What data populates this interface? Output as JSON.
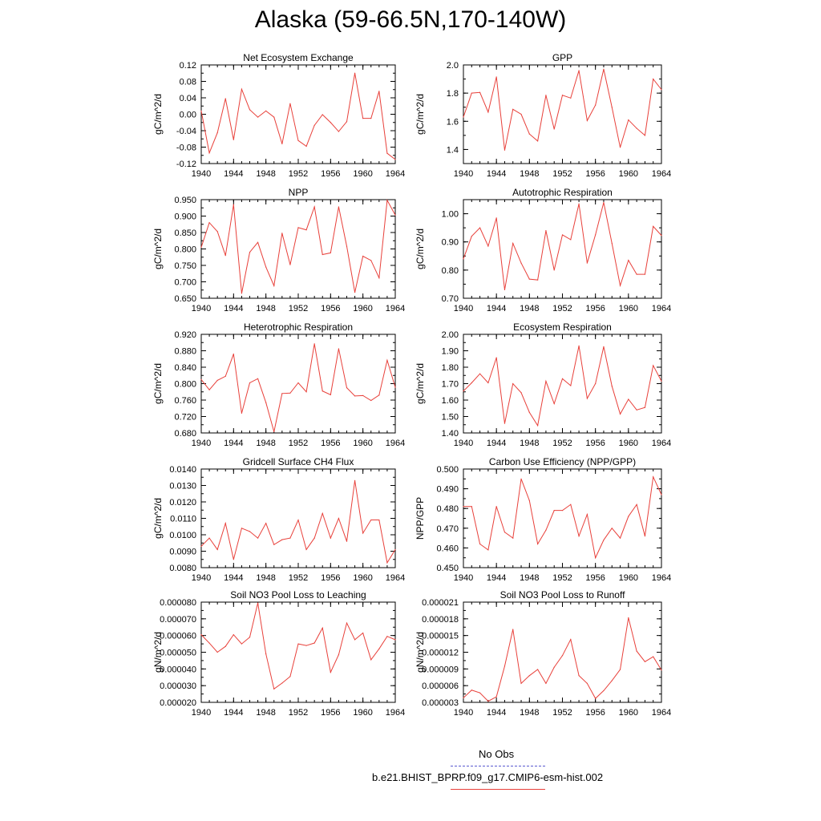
{
  "title": "Alaska (59-66.5N,170-140W)",
  "legend": {
    "obs_label": "No Obs",
    "obs_color": "#5a5ad0",
    "model_label": "b.e21.BHIST_BPRP.f09_g17.CMIP6-esm-hist.002",
    "model_color": "#e8403a"
  },
  "chart_data": [
    {
      "type": "line",
      "title": "Net Ecosystem Exchange",
      "ylabel": "gC/m^2/d",
      "xlim": [
        1940,
        1964
      ],
      "ylim": [
        -0.12,
        0.12
      ],
      "xticks": [
        "1940",
        "1944",
        "1948",
        "1952",
        "1956",
        "1960",
        "1964"
      ],
      "yticks": [
        "-0.12",
        "-0.08",
        "-0.04",
        "0.00",
        "0.04",
        "0.08",
        "0.12"
      ],
      "x": [
        1940,
        1941,
        1942,
        1943,
        1944,
        1945,
        1946,
        1947,
        1948,
        1949,
        1950,
        1951,
        1952,
        1953,
        1954,
        1955,
        1956,
        1957,
        1958,
        1959,
        1960,
        1961,
        1962,
        1963,
        1964
      ],
      "values": [
        0.008,
        -0.094,
        -0.045,
        0.038,
        -0.062,
        0.061,
        0.011,
        -0.007,
        0.008,
        -0.007,
        -0.072,
        0.026,
        -0.064,
        -0.078,
        -0.027,
        -0.001,
        -0.02,
        -0.042,
        -0.018,
        0.1,
        -0.01,
        -0.01,
        0.056,
        -0.095,
        -0.11
      ],
      "series_name": "b.e21.BHIST_BPRP.f09_g17.CMIP6-esm-hist.002"
    },
    {
      "type": "line",
      "title": "GPP",
      "ylabel": "gC/m^2/d",
      "xlim": [
        1940,
        1964
      ],
      "ylim": [
        1.3,
        2.0
      ],
      "xticks": [
        "1940",
        "1944",
        "1948",
        "1952",
        "1956",
        "1960",
        "1964"
      ],
      "yticks": [
        "1.4",
        "1.6",
        "1.8",
        "2.0"
      ],
      "x": [
        1940,
        1941,
        1942,
        1943,
        1944,
        1945,
        1946,
        1947,
        1948,
        1949,
        1950,
        1951,
        1952,
        1953,
        1954,
        1955,
        1956,
        1957,
        1958,
        1959,
        1960,
        1961,
        1962,
        1963,
        1964
      ],
      "values": [
        1.63,
        1.8,
        1.805,
        1.665,
        1.915,
        1.395,
        1.685,
        1.65,
        1.51,
        1.46,
        1.785,
        1.545,
        1.785,
        1.765,
        1.96,
        1.605,
        1.715,
        1.97,
        1.7,
        1.415,
        1.61,
        1.55,
        1.5,
        1.9,
        1.825
      ],
      "series_name": "b.e21.BHIST_BPRP.f09_g17.CMIP6-esm-hist.002"
    },
    {
      "type": "line",
      "title": "NPP",
      "ylabel": "gC/m^2/d",
      "xlim": [
        1940,
        1964
      ],
      "ylim": [
        0.65,
        0.95
      ],
      "xticks": [
        "1940",
        "1944",
        "1948",
        "1952",
        "1956",
        "1960",
        "1964"
      ],
      "yticks": [
        "0.650",
        "0.700",
        "0.750",
        "0.800",
        "0.850",
        "0.900",
        "0.950"
      ],
      "x": [
        1940,
        1941,
        1942,
        1943,
        1944,
        1945,
        1946,
        1947,
        1948,
        1949,
        1950,
        1951,
        1952,
        1953,
        1954,
        1955,
        1956,
        1957,
        1958,
        1959,
        1960,
        1961,
        1962,
        1963,
        1964
      ],
      "values": [
        0.805,
        0.88,
        0.853,
        0.78,
        0.935,
        0.665,
        0.79,
        0.82,
        0.745,
        0.688,
        0.848,
        0.752,
        0.865,
        0.858,
        0.928,
        0.783,
        0.788,
        0.928,
        0.808,
        0.668,
        0.778,
        0.765,
        0.712,
        0.948,
        0.903
      ],
      "series_name": "b.e21.BHIST_BPRP.f09_g17.CMIP6-esm-hist.002"
    },
    {
      "type": "line",
      "title": "Autotrophic Respiration",
      "ylabel": "gC/m^2/d",
      "xlim": [
        1940,
        1964
      ],
      "ylim": [
        0.7,
        1.05
      ],
      "xticks": [
        "1940",
        "1944",
        "1948",
        "1952",
        "1956",
        "1960",
        "1964"
      ],
      "yticks": [
        "0.70",
        "0.80",
        "0.90",
        "1.00"
      ],
      "x": [
        1940,
        1941,
        1942,
        1943,
        1944,
        1945,
        1946,
        1947,
        1948,
        1949,
        1950,
        1951,
        1952,
        1953,
        1954,
        1955,
        1956,
        1957,
        1958,
        1959,
        1960,
        1961,
        1962,
        1963,
        1964
      ],
      "values": [
        0.84,
        0.92,
        0.95,
        0.885,
        0.985,
        0.73,
        0.895,
        0.825,
        0.768,
        0.765,
        0.94,
        0.8,
        0.925,
        0.908,
        1.035,
        0.825,
        0.925,
        1.04,
        0.895,
        0.745,
        0.835,
        0.785,
        0.785,
        0.955,
        0.923
      ],
      "series_name": "b.e21.BHIST_BPRP.f09_g17.CMIP6-esm-hist.002"
    },
    {
      "type": "line",
      "title": "Heterotrophic Respiration",
      "ylabel": "gC/m^2/d",
      "xlim": [
        1940,
        1964
      ],
      "ylim": [
        0.68,
        0.92
      ],
      "xticks": [
        "1940",
        "1944",
        "1948",
        "1952",
        "1956",
        "1960",
        "1964"
      ],
      "yticks": [
        "0.680",
        "0.720",
        "0.760",
        "0.800",
        "0.840",
        "0.880",
        "0.920"
      ],
      "x": [
        1940,
        1941,
        1942,
        1943,
        1944,
        1945,
        1946,
        1947,
        1948,
        1949,
        1950,
        1951,
        1952,
        1953,
        1954,
        1955,
        1956,
        1957,
        1958,
        1959,
        1960,
        1961,
        1962,
        1963,
        1964
      ],
      "values": [
        0.81,
        0.785,
        0.808,
        0.818,
        0.872,
        0.728,
        0.802,
        0.812,
        0.754,
        0.683,
        0.776,
        0.777,
        0.802,
        0.78,
        0.897,
        0.782,
        0.773,
        0.885,
        0.79,
        0.77,
        0.771,
        0.759,
        0.772,
        0.857,
        0.791
      ],
      "series_name": "b.e21.BHIST_BPRP.f09_g17.CMIP6-esm-hist.002"
    },
    {
      "type": "line",
      "title": "Ecosystem Respiration",
      "ylabel": "gC/m^2/d",
      "xlim": [
        1940,
        1964
      ],
      "ylim": [
        1.4,
        2.0
      ],
      "xticks": [
        "1940",
        "1944",
        "1948",
        "1952",
        "1956",
        "1960",
        "1964"
      ],
      "yticks": [
        "1.40",
        "1.50",
        "1.60",
        "1.70",
        "1.80",
        "1.90",
        "2.00"
      ],
      "x": [
        1940,
        1941,
        1942,
        1943,
        1944,
        1945,
        1946,
        1947,
        1948,
        1949,
        1950,
        1951,
        1952,
        1953,
        1954,
        1955,
        1956,
        1957,
        1958,
        1959,
        1960,
        1961,
        1962,
        1963,
        1964
      ],
      "values": [
        1.655,
        1.705,
        1.76,
        1.705,
        1.858,
        1.458,
        1.7,
        1.645,
        1.525,
        1.445,
        1.715,
        1.578,
        1.73,
        1.688,
        1.93,
        1.61,
        1.7,
        1.925,
        1.685,
        1.515,
        1.605,
        1.54,
        1.555,
        1.81,
        1.715
      ],
      "series_name": "b.e21.BHIST_BPRP.f09_g17.CMIP6-esm-hist.002"
    },
    {
      "type": "line",
      "title": "Gridcell Surface CH4 Flux",
      "ylabel": "gC/m^2/d",
      "xlim": [
        1940,
        1964
      ],
      "ylim": [
        0.008,
        0.014
      ],
      "xticks": [
        "1940",
        "1944",
        "1948",
        "1952",
        "1956",
        "1960",
        "1964"
      ],
      "yticks": [
        "0.0080",
        "0.0090",
        "0.0100",
        "0.0110",
        "0.0120",
        "0.0130",
        "0.0140"
      ],
      "x": [
        1940,
        1941,
        1942,
        1943,
        1944,
        1945,
        1946,
        1947,
        1948,
        1949,
        1950,
        1951,
        1952,
        1953,
        1954,
        1955,
        1956,
        1957,
        1958,
        1959,
        1960,
        1961,
        1962,
        1963,
        1964
      ],
      "values": [
        0.0093,
        0.0098,
        0.0091,
        0.0107,
        0.0085,
        0.0104,
        0.0102,
        0.0098,
        0.0107,
        0.0094,
        0.0097,
        0.0098,
        0.0109,
        0.0091,
        0.0098,
        0.0113,
        0.0098,
        0.011,
        0.0096,
        0.0133,
        0.0101,
        0.0109,
        0.0109,
        0.0083,
        0.0091
      ],
      "series_name": "b.e21.BHIST_BPRP.f09_g17.CMIP6-esm-hist.002"
    },
    {
      "type": "line",
      "title": "Carbon Use Efficiency (NPP/GPP)",
      "ylabel": "NPP/GPP",
      "xlim": [
        1940,
        1964
      ],
      "ylim": [
        0.45,
        0.5
      ],
      "xticks": [
        "1940",
        "1944",
        "1948",
        "1952",
        "1956",
        "1960",
        "1964"
      ],
      "yticks": [
        "0.450",
        "0.460",
        "0.470",
        "0.480",
        "0.490",
        "0.500"
      ],
      "x": [
        1940,
        1941,
        1942,
        1943,
        1944,
        1945,
        1946,
        1947,
        1948,
        1949,
        1950,
        1951,
        1952,
        1953,
        1954,
        1955,
        1956,
        1957,
        1958,
        1959,
        1960,
        1961,
        1962,
        1963,
        1964
      ],
      "values": [
        0.481,
        0.481,
        0.462,
        0.459,
        0.481,
        0.468,
        0.465,
        0.495,
        0.484,
        0.462,
        0.469,
        0.479,
        0.479,
        0.482,
        0.466,
        0.477,
        0.455,
        0.464,
        0.47,
        0.465,
        0.476,
        0.482,
        0.466,
        0.496,
        0.487
      ],
      "series_name": "b.e21.BHIST_BPRP.f09_g17.CMIP6-esm-hist.002"
    },
    {
      "type": "line",
      "title": "Soil NO3 Pool Loss to Leaching",
      "ylabel": "gN/m^2/d",
      "xlim": [
        1940,
        1964
      ],
      "ylim": [
        2e-05,
        8e-05
      ],
      "xticks": [
        "1940",
        "1944",
        "1948",
        "1952",
        "1956",
        "1960",
        "1964"
      ],
      "yticks": [
        "0.000020",
        "0.000030",
        "0.000040",
        "0.000050",
        "0.000060",
        "0.000070",
        "0.000080"
      ],
      "x": [
        1940,
        1941,
        1942,
        1943,
        1944,
        1945,
        1946,
        1947,
        1948,
        1949,
        1950,
        1951,
        1952,
        1953,
        1954,
        1955,
        1956,
        1957,
        1958,
        1959,
        1960,
        1961,
        1962,
        1963,
        1964
      ],
      "values": [
        6.05e-05,
        5.55e-05,
        5e-05,
        5.35e-05,
        6.05e-05,
        5.5e-05,
        5.9e-05,
        7.95e-05,
        4.9e-05,
        2.8e-05,
        3.15e-05,
        3.55e-05,
        5.5e-05,
        5.4e-05,
        5.55e-05,
        6.45e-05,
        3.8e-05,
        4.85e-05,
        6.75e-05,
        5.75e-05,
        6.15e-05,
        4.55e-05,
        5.2e-05,
        5.95e-05,
        5.75e-05
      ],
      "series_name": "b.e21.BHIST_BPRP.f09_g17.CMIP6-esm-hist.002"
    },
    {
      "type": "line",
      "title": "Soil NO3 Pool Loss to Runoff",
      "ylabel": "gN/m^2/d",
      "xlim": [
        1940,
        1964
      ],
      "ylim": [
        3e-06,
        2.1e-05
      ],
      "xticks": [
        "1940",
        "1944",
        "1948",
        "1952",
        "1956",
        "1960",
        "1964"
      ],
      "yticks": [
        "0.000003",
        "0.000006",
        "0.000009",
        "0.000012",
        "0.000015",
        "0.000018",
        "0.000021"
      ],
      "x": [
        1940,
        1941,
        1942,
        1943,
        1944,
        1945,
        1946,
        1947,
        1948,
        1949,
        1950,
        1951,
        1952,
        1953,
        1954,
        1955,
        1956,
        1957,
        1958,
        1959,
        1960,
        1961,
        1962,
        1963,
        1964
      ],
      "values": [
        3.8e-06,
        5.2e-06,
        4.7e-06,
        3.2e-06,
        4e-06,
        9.5e-06,
        1.61e-05,
        6.4e-06,
        7.8e-06,
        8.9e-06,
        6.4e-06,
        9.3e-06,
        1.14e-05,
        1.43e-05,
        7.8e-06,
        6.4e-06,
        3.7e-06,
        5.1e-06,
        6.9e-06,
        8.9e-06,
        1.82e-05,
        1.22e-05,
        1.03e-05,
        1.12e-05,
        8.8e-06
      ],
      "series_name": "b.e21.BHIST_BPRP.f09_g17.CMIP6-esm-hist.002"
    }
  ]
}
